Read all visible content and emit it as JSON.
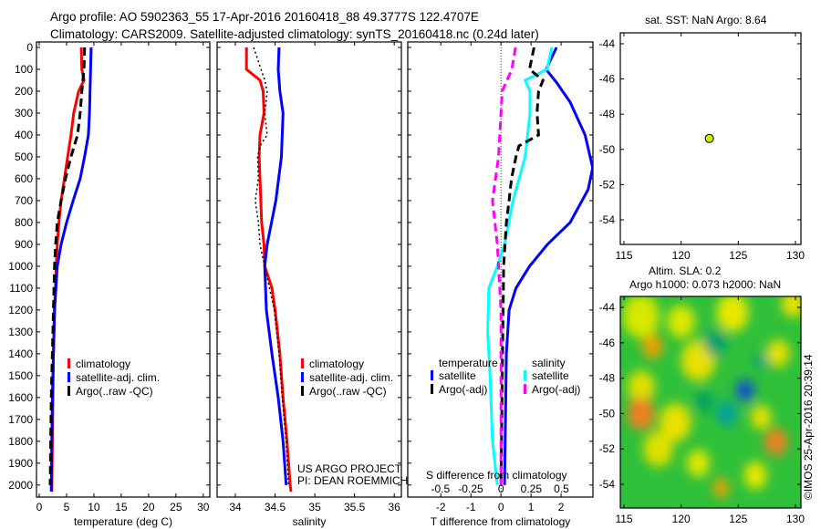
{
  "title": {
    "line1": "Argo profile: AO 5902363_55 17-Apr-2016 20160418_88 49.3777S 122.4707E",
    "line2": "Climatology: CARS2009. Satellite-adjusted climatology: synTS_20160418.nc (0.24d later)"
  },
  "credit": {
    "line1": "US ARGO PROJECT",
    "line2": "PI: DEAN ROEMMICH"
  },
  "watermark": "©IMOS 25-Apr-2016 20:39:14",
  "colors": {
    "red": "#ff0000",
    "blue": "#0000ff",
    "black": "#000000",
    "cyan": "#00ffff",
    "magenta": "#ff00ff"
  },
  "chart_data": [
    {
      "type": "line",
      "id": "temperature",
      "xlabel": "temperature (deg C)",
      "ylabel": "",
      "xlim": [
        -0.5,
        31.2
      ],
      "ylim": [
        2055,
        -25
      ],
      "xticks": [
        0,
        5,
        10,
        15,
        20,
        25,
        30
      ],
      "yticks": [
        0,
        100,
        200,
        300,
        400,
        500,
        600,
        700,
        800,
        900,
        1000,
        1100,
        1200,
        1300,
        1400,
        1500,
        1600,
        1700,
        1800,
        1900,
        2000
      ],
      "legend": [
        "climatology",
        "satellite-adj. clim.",
        "Argo(..raw -QC)"
      ],
      "series": [
        {
          "name": "climatology",
          "color": "#ff0000",
          "style": "solid",
          "depth": [
            0,
            100,
            150,
            200,
            300,
            400,
            500,
            600,
            700,
            800,
            900,
            1000,
            1200,
            1400,
            1600,
            1800,
            2030
          ],
          "values": [
            7.7,
            7.8,
            8.2,
            7.2,
            6.3,
            5.8,
            5.2,
            4.6,
            4.0,
            3.6,
            3.3,
            3.1,
            2.8,
            2.6,
            2.5,
            2.4,
            2.3
          ]
        },
        {
          "name": "satellite-adj. clim.",
          "color": "#0000ff",
          "style": "solid",
          "depth": [
            0,
            100,
            200,
            300,
            400,
            500,
            600,
            700,
            800,
            900,
            1000,
            1200,
            1400,
            1600,
            1800,
            2030
          ],
          "values": [
            9.5,
            9.4,
            9.3,
            9.2,
            9.0,
            8.3,
            7.5,
            6.2,
            5.0,
            4.0,
            3.3,
            2.8,
            2.6,
            2.4,
            2.3,
            2.2
          ]
        },
        {
          "name": "Argo(..raw -QC)",
          "color": "#000000",
          "style": "dashed",
          "depth": [
            0,
            100,
            200,
            300,
            400,
            500,
            600,
            700,
            800,
            900,
            1000,
            1200,
            1400,
            1600,
            1800,
            2000
          ],
          "values": [
            8.3,
            8.2,
            7.8,
            7.5,
            7.0,
            5.8,
            4.8,
            4.0,
            3.3,
            3.0,
            2.8,
            2.6,
            2.4,
            2.2,
            2.1,
            2.0
          ]
        }
      ]
    },
    {
      "type": "line",
      "id": "salinity",
      "xlabel": "salinity",
      "ylabel": "",
      "xlim": [
        33.77,
        36.09
      ],
      "ylim": [
        2055,
        -25
      ],
      "xticks": [
        34,
        34.5,
        35,
        35.5,
        36
      ],
      "legend": [
        "climatology",
        "satellite-adj. clim.",
        "Argo(..raw -QC)"
      ],
      "series": [
        {
          "name": "climatology",
          "color": "#ff0000",
          "style": "solid",
          "depth": [
            0,
            100,
            150,
            200,
            300,
            400,
            500,
            600,
            800,
            900,
            1000,
            1100,
            1200,
            1400,
            1600,
            1800,
            2000,
            2030
          ],
          "values": [
            34.14,
            34.14,
            34.31,
            34.35,
            34.36,
            34.31,
            34.3,
            34.31,
            34.33,
            34.36,
            34.37,
            34.46,
            34.5,
            34.56,
            34.6,
            34.65,
            34.69,
            34.7
          ]
        },
        {
          "name": "satellite-adj. clim.",
          "color": "#0000ff",
          "style": "solid",
          "depth": [
            0,
            100,
            200,
            300,
            500,
            700,
            900,
            1000,
            1200,
            1400,
            1600,
            1800,
            2000
          ],
          "values": [
            34.55,
            34.54,
            34.56,
            34.6,
            34.58,
            34.51,
            34.4,
            34.37,
            34.39,
            34.46,
            34.54,
            34.6,
            34.64
          ]
        },
        {
          "name": "Argo(..raw -QC)",
          "color": "#000000",
          "style": "dotted",
          "depth": [
            0,
            150,
            200,
            300,
            400,
            450,
            500,
            600,
            700,
            800,
            900,
            1000,
            1200,
            1400,
            1600,
            1800,
            2000
          ],
          "values": [
            34.23,
            34.37,
            34.4,
            34.37,
            34.4,
            34.31,
            34.28,
            34.29,
            34.25,
            34.29,
            34.31,
            34.37,
            34.49,
            34.55,
            34.59,
            34.64,
            34.67
          ]
        }
      ]
    },
    {
      "type": "line",
      "id": "difference",
      "xlabel": "T difference from climatology",
      "x2label": "S difference from climatology",
      "xlim": [
        -3.1,
        3.06
      ],
      "x2lim": [
        -0.77,
        0.76
      ],
      "ylim": [
        2055,
        -25
      ],
      "xticks": [
        -2,
        -1,
        0,
        1,
        2
      ],
      "x2ticks": [
        -0.5,
        -0.25,
        0,
        0.25,
        0.5
      ],
      "legend_headers": [
        "temperature",
        "salinity"
      ],
      "legend": [
        "satellite",
        "Argo(-adj)",
        "satellite",
        "Argo(-adj)"
      ],
      "series": [
        {
          "name": "T satellite",
          "axis": "T",
          "color": "#0000ff",
          "style": "solid",
          "depth": [
            0,
            100,
            160,
            250,
            400,
            550,
            650,
            800,
            900,
            1000,
            1100,
            1200,
            1400,
            2000
          ],
          "values": [
            1.85,
            1.5,
            1.85,
            2.3,
            2.8,
            3.05,
            2.9,
            2.3,
            1.55,
            0.95,
            0.5,
            0.27,
            0.18,
            0.12
          ]
        },
        {
          "name": "S satellite",
          "axis": "S",
          "color": "#00ffff",
          "style": "solid",
          "depth": [
            0,
            100,
            150,
            200,
            300,
            500,
            700,
            900,
            1000,
            1100,
            1300,
            1500,
            1800,
            2000
          ],
          "values": [
            0.42,
            0.38,
            0.2,
            0.24,
            0.24,
            0.2,
            0.1,
            0.03,
            -0.03,
            -0.1,
            -0.11,
            -0.09,
            -0.07,
            -0.03
          ]
        },
        {
          "name": "T Argo(-adj)",
          "axis": "T",
          "color": "#000000",
          "style": "dashed",
          "depth": [
            0,
            100,
            150,
            200,
            300,
            400,
            450,
            500,
            600,
            700,
            800,
            1000,
            2000
          ],
          "values": [
            1.1,
            0.95,
            1.4,
            1.25,
            1.2,
            1.25,
            0.6,
            0.5,
            0.35,
            0.27,
            0.18,
            0.09,
            0.0
          ]
        },
        {
          "name": "S Argo(-adj)",
          "axis": "S",
          "color": "#ff00ff",
          "style": "dashed",
          "depth": [
            0,
            100,
            200,
            300,
            500,
            700,
            900,
            1200,
            2000
          ],
          "values": [
            0.12,
            0.09,
            0.01,
            0.0,
            -0.02,
            -0.07,
            -0.03,
            0.0,
            0.0
          ]
        }
      ]
    },
    {
      "type": "scatter",
      "id": "sst-map",
      "title": "sat. SST: NaN Argo: 8.64",
      "xlim": [
        114.68,
        130.48
      ],
      "ylim": [
        -55.4,
        -43.38
      ],
      "xticks": [
        115,
        120,
        125,
        130
      ],
      "yticks": [
        -44,
        -46,
        -48,
        -50,
        -52,
        -54
      ],
      "points": [
        {
          "lon": 122.47,
          "lat": -49.38,
          "color": "#c8f000"
        }
      ]
    },
    {
      "type": "heatmap",
      "id": "sla-map",
      "title1": "Altim. SLA: 0.2",
      "title2": "Argo h1000: 0.073 h2000: NaN",
      "xlim": [
        114.68,
        130.48
      ],
      "ylim": [
        -55.34,
        -43.38
      ],
      "xticks": [
        115,
        120,
        125,
        130
      ],
      "yticks": [
        -44,
        -46,
        -48,
        -50,
        -52,
        -54
      ],
      "background": "#2fc03a",
      "blobs": [
        {
          "lon": 116.5,
          "lat": -44.5,
          "r": 1.6,
          "color": "#d8e800"
        },
        {
          "lon": 117.5,
          "lat": -46.2,
          "r": 0.9,
          "color": "#f0a000"
        },
        {
          "lon": 120,
          "lat": -44.8,
          "r": 1.2,
          "color": "#e0e800"
        },
        {
          "lon": 121.5,
          "lat": -47,
          "r": 1.5,
          "color": "#e8e000"
        },
        {
          "lon": 116.5,
          "lat": -48.5,
          "r": 1.2,
          "color": "#e0e000"
        },
        {
          "lon": 116.5,
          "lat": -50,
          "r": 1.2,
          "color": "#f08020"
        },
        {
          "lon": 119.5,
          "lat": -50.5,
          "r": 1.4,
          "color": "#e8e000"
        },
        {
          "lon": 122,
          "lat": -49.3,
          "r": 0.8,
          "color": "#00a060"
        },
        {
          "lon": 123,
          "lat": -46,
          "r": 1.0,
          "color": "#00a070"
        },
        {
          "lon": 124.5,
          "lat": -44.3,
          "r": 1.4,
          "color": "#e8e800"
        },
        {
          "lon": 125.6,
          "lat": -48.7,
          "r": 0.8,
          "color": "#1050d0"
        },
        {
          "lon": 124,
          "lat": -50,
          "r": 0.9,
          "color": "#00a0a0"
        },
        {
          "lon": 127,
          "lat": -50.2,
          "r": 0.9,
          "color": "#e8e000"
        },
        {
          "lon": 128.3,
          "lat": -51.6,
          "r": 1.0,
          "color": "#f08020"
        },
        {
          "lon": 128.5,
          "lat": -46.6,
          "r": 1.0,
          "color": "#e8e000"
        },
        {
          "lon": 127,
          "lat": -47,
          "r": 0.6,
          "color": "#00a080"
        },
        {
          "lon": 118,
          "lat": -52,
          "r": 1.3,
          "color": "#e0e000"
        },
        {
          "lon": 121.5,
          "lat": -52.8,
          "r": 1.0,
          "color": "#e0e800"
        },
        {
          "lon": 123.5,
          "lat": -54.2,
          "r": 0.7,
          "color": "#f0a000"
        },
        {
          "lon": 126.5,
          "lat": -53.5,
          "r": 1.0,
          "color": "#e8e800"
        },
        {
          "lon": 129.8,
          "lat": -43.8,
          "r": 1.0,
          "color": "#e8e000"
        }
      ]
    }
  ]
}
